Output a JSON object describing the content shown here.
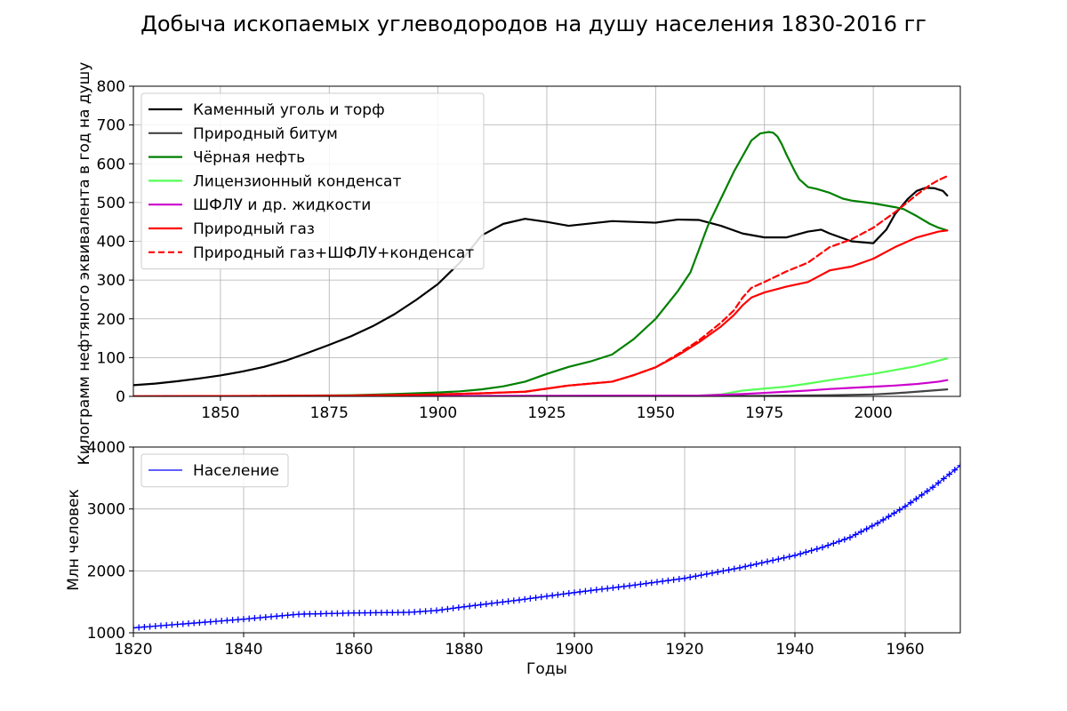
{
  "title": "Добыча ископаемых углеводородов на душу населения 1830-2016 гг",
  "chart_data": [
    {
      "type": "line",
      "xlabel": "",
      "ylabel": "Килограмм нефтяного эквивалента в год на душу",
      "xlim": [
        1830,
        2020
      ],
      "ylim": [
        0,
        800
      ],
      "xticks": [
        1850,
        1875,
        1900,
        1925,
        1950,
        1975,
        2000
      ],
      "yticks": [
        0,
        100,
        200,
        300,
        400,
        500,
        600,
        700,
        800
      ],
      "grid": true,
      "legend_position": "top-left",
      "series": [
        {
          "name": "Каменный уголь и торф",
          "color": "#000000",
          "dash": "solid",
          "x": [
            1830,
            1835,
            1840,
            1845,
            1850,
            1855,
            1860,
            1865,
            1870,
            1875,
            1880,
            1885,
            1890,
            1895,
            1900,
            1905,
            1910,
            1915,
            1920,
            1925,
            1930,
            1935,
            1940,
            1945,
            1950,
            1955,
            1960,
            1965,
            1970,
            1975,
            1980,
            1985,
            1988,
            1990,
            1995,
            2000,
            2003,
            2005,
            2008,
            2010,
            2012,
            2014,
            2016,
            2017
          ],
          "y": [
            29,
            33,
            39,
            46,
            54,
            64,
            76,
            92,
            112,
            133,
            155,
            181,
            212,
            249,
            290,
            345,
            415,
            445,
            458,
            450,
            440,
            446,
            452,
            450,
            448,
            456,
            455,
            440,
            420,
            410,
            410,
            425,
            430,
            420,
            400,
            395,
            430,
            470,
            510,
            530,
            538,
            537,
            530,
            518
          ]
        },
        {
          "name": "Природный битум",
          "color": "#444444",
          "dash": "solid",
          "x": [
            1830,
            1960,
            1970,
            1980,
            1990,
            2000,
            2005,
            2010,
            2017
          ],
          "y": [
            0,
            0,
            1,
            2,
            3,
            5,
            8,
            12,
            18
          ]
        },
        {
          "name": "Чёрная нефть",
          "color": "#008000",
          "dash": "solid",
          "x": [
            1830,
            1860,
            1870,
            1880,
            1890,
            1900,
            1905,
            1910,
            1915,
            1920,
            1925,
            1930,
            1935,
            1940,
            1945,
            1950,
            1955,
            1958,
            1960,
            1962,
            1965,
            1968,
            1970,
            1972,
            1974,
            1975,
            1976,
            1977,
            1978,
            1979,
            1980,
            1982,
            1983,
            1985,
            1987,
            1990,
            1993,
            1995,
            2000,
            2003,
            2005,
            2007,
            2010,
            2013,
            2015,
            2017
          ],
          "y": [
            0,
            1,
            2,
            3,
            6,
            10,
            13,
            18,
            26,
            38,
            58,
            76,
            90,
            108,
            148,
            200,
            270,
            320,
            380,
            440,
            510,
            580,
            620,
            660,
            678,
            680,
            682,
            680,
            670,
            650,
            625,
            580,
            560,
            540,
            535,
            525,
            510,
            505,
            498,
            492,
            488,
            483,
            465,
            445,
            435,
            428
          ]
        },
        {
          "name": "Лицензионный конденсат",
          "color": "#55ff55",
          "dash": "solid",
          "x": [
            1830,
            1960,
            1965,
            1970,
            1975,
            1980,
            1985,
            1990,
            1995,
            2000,
            2005,
            2010,
            2015,
            2017
          ],
          "y": [
            0,
            2,
            5,
            15,
            20,
            25,
            33,
            42,
            50,
            58,
            68,
            78,
            92,
            98
          ]
        },
        {
          "name": "ШФЛУ и др. жидкости",
          "color": "#cc00cc",
          "dash": "solid",
          "x": [
            1830,
            1960,
            1970,
            1975,
            1980,
            1985,
            1990,
            1995,
            2000,
            2005,
            2010,
            2015,
            2017
          ],
          "y": [
            0,
            2,
            6,
            9,
            12,
            15,
            19,
            22,
            25,
            28,
            32,
            38,
            42
          ]
        },
        {
          "name": "Природный газ",
          "color": "#ff0000",
          "dash": "solid",
          "x": [
            1830,
            1880,
            1900,
            1910,
            1920,
            1925,
            1930,
            1940,
            1945,
            1950,
            1955,
            1960,
            1965,
            1968,
            1970,
            1972,
            1975,
            1980,
            1985,
            1990,
            1995,
            2000,
            2005,
            2010,
            2015,
            2017
          ],
          "y": [
            0,
            2,
            5,
            8,
            12,
            20,
            28,
            38,
            55,
            75,
            105,
            140,
            180,
            210,
            235,
            255,
            268,
            283,
            295,
            325,
            335,
            355,
            385,
            410,
            425,
            428
          ]
        },
        {
          "name": "Природный газ+ШФЛУ+конденсат",
          "color": "#ff0000",
          "dash": "dashed",
          "x": [
            1830,
            1880,
            1900,
            1910,
            1920,
            1925,
            1930,
            1940,
            1945,
            1950,
            1955,
            1960,
            1965,
            1968,
            1970,
            1972,
            1975,
            1980,
            1985,
            1990,
            1995,
            2000,
            2005,
            2010,
            2013,
            2015,
            2017
          ],
          "y": [
            0,
            2,
            5,
            8,
            12,
            20,
            28,
            38,
            55,
            75,
            108,
            145,
            190,
            222,
            255,
            280,
            295,
            322,
            345,
            385,
            405,
            435,
            475,
            520,
            545,
            558,
            568
          ]
        }
      ]
    },
    {
      "type": "line",
      "xlabel": "Годы",
      "ylabel": "Млн человек",
      "xlim": [
        1820,
        1970
      ],
      "ylim": [
        1000,
        4000
      ],
      "xticks": [
        1820,
        1840,
        1860,
        1880,
        1900,
        1920,
        1940,
        1960
      ],
      "yticks": [
        1000,
        2000,
        3000,
        4000
      ],
      "grid": true,
      "legend_position": "top-left",
      "series": [
        {
          "name": "Население",
          "color": "#0000ff",
          "dash": "solid",
          "marker": "plus",
          "x": [
            1820,
            1830,
            1840,
            1850,
            1860,
            1870,
            1875,
            1880,
            1890,
            1900,
            1910,
            1920,
            1930,
            1940,
            1945,
            1950,
            1955,
            1960,
            1965,
            1970
          ],
          "y": [
            1080,
            1150,
            1220,
            1300,
            1320,
            1330,
            1360,
            1420,
            1530,
            1650,
            1760,
            1880,
            2050,
            2250,
            2380,
            2540,
            2770,
            3040,
            3350,
            3700
          ]
        }
      ]
    }
  ]
}
